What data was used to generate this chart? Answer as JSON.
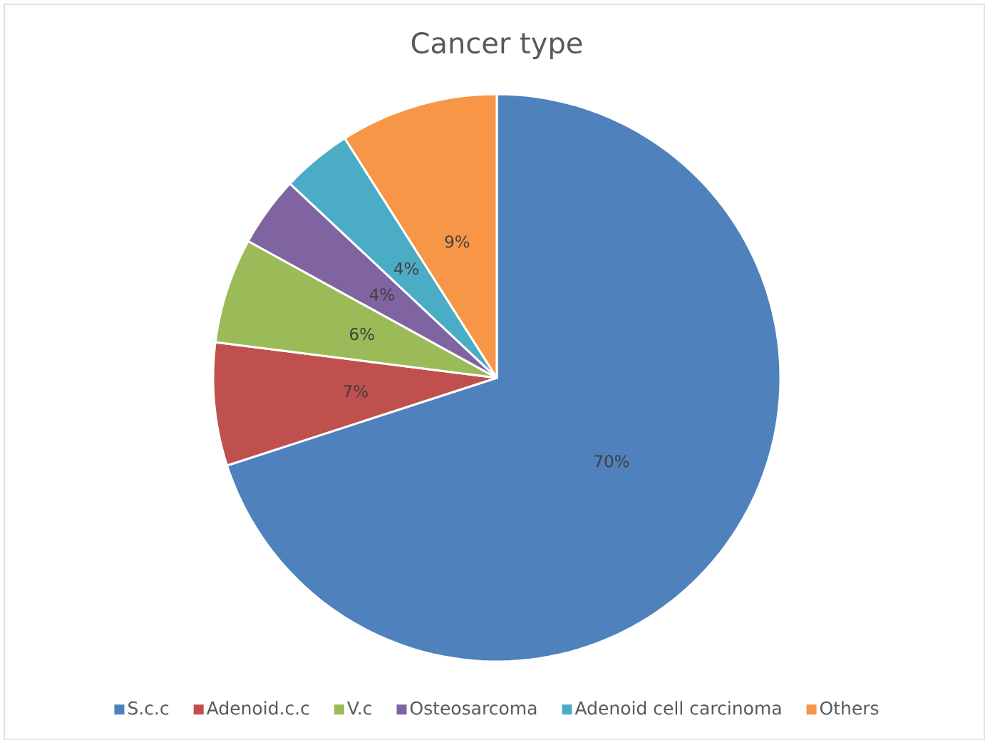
{
  "chart_data": {
    "type": "pie",
    "title": "Cancer type",
    "categories": [
      "S.c.c",
      "Adenoid.c.c",
      "V.c",
      "Osteosarcoma",
      "Adenoid cell carcinoma",
      "Others"
    ],
    "values": [
      70,
      7,
      6,
      4,
      4,
      9
    ],
    "value_labels": [
      "70%",
      "7%",
      "6%",
      "4%",
      "4%",
      "9%"
    ],
    "colors": [
      "#4f81bd",
      "#c0504d",
      "#9bbb59",
      "#8064a2",
      "#4bacc6",
      "#f79646"
    ],
    "legend": "bottom"
  }
}
